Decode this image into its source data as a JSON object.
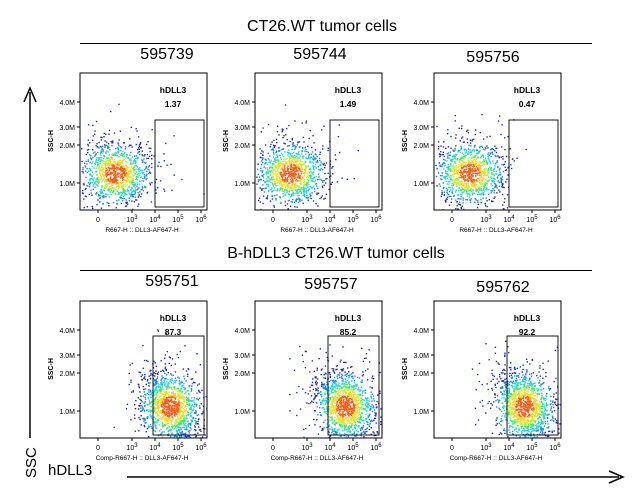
{
  "groups": [
    {
      "title": "CT26.WT tumor cells",
      "samples": [
        {
          "id": "595739",
          "gate_name": "hDLL3",
          "gate_value": "1.37",
          "xlabel": "R667-H :: DLL3-AF647-H"
        },
        {
          "id": "595744",
          "gate_name": "hDLL3",
          "gate_value": "1.49",
          "xlabel": "R667-H :: DLL3-AF647-H"
        },
        {
          "id": "595756",
          "gate_name": "hDLL3",
          "gate_value": "0.47",
          "xlabel": "R667-H :: DLL3-AF647-H"
        }
      ]
    },
    {
      "title": "B-hDLL3 CT26.WT tumor cells",
      "samples": [
        {
          "id": "595751",
          "gate_name": "hDLL3",
          "gate_value": "87.3",
          "xlabel": "Comp-R667-H :: DLL3-AF647-H"
        },
        {
          "id": "595757",
          "gate_name": "hDLL3",
          "gate_value": "85.2",
          "xlabel": "Comp-R667-H :: DLL3-AF647-H"
        },
        {
          "id": "595762",
          "gate_name": "hDLL3",
          "gate_value": "92.2",
          "xlabel": "Comp-R667-H :: DLL3-AF647-H"
        }
      ]
    }
  ],
  "axis_titles": {
    "y": "SSC",
    "x": "hDLL3"
  },
  "chart_data": {
    "type": "scatter",
    "plot_kind": "flow cytometry density dot plot",
    "ylabel": "SSC-H",
    "yticks": [
      "1.0M",
      "2.0M",
      "3.0M",
      "4.0M"
    ],
    "xticks": [
      "0",
      "10^3",
      "10^4",
      "10^5",
      "10^6"
    ],
    "xscale": "log",
    "colormap": [
      "#1b2cd6",
      "#1b86f0",
      "#1fd0f0",
      "#3ce37a",
      "#c8f02a",
      "#ffd21a",
      "#ff5a14"
    ]
  }
}
